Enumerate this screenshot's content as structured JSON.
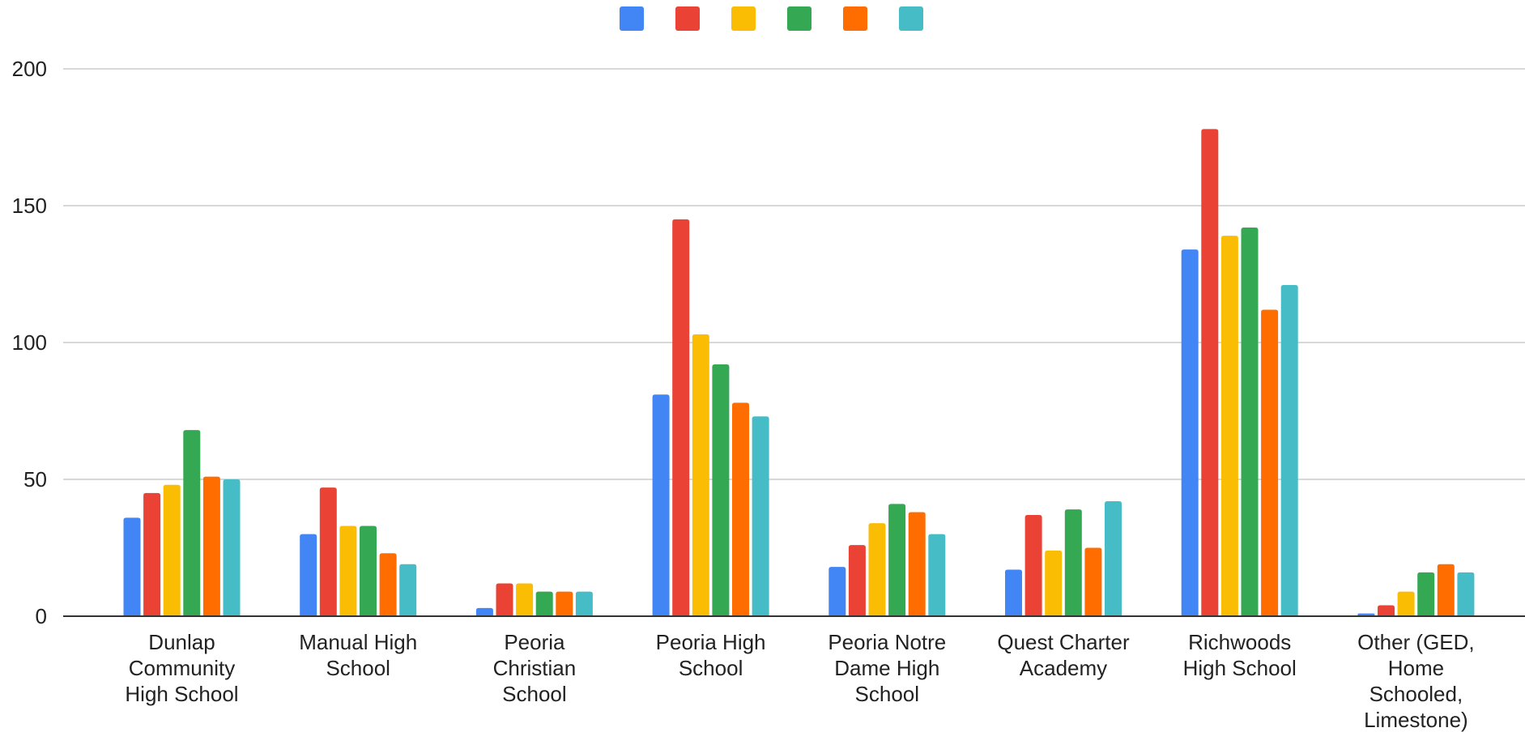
{
  "chart_data": {
    "type": "bar",
    "categories": [
      [
        "Dunlap",
        "Community",
        "High School"
      ],
      [
        "Manual High",
        "School"
      ],
      [
        "Peoria",
        "Christian",
        "School"
      ],
      [
        "Peoria High",
        "School"
      ],
      [
        "Peoria Notre",
        "Dame High",
        "School"
      ],
      [
        "Quest Charter",
        "Academy"
      ],
      [
        "Richwoods",
        "High School"
      ],
      [
        "Other (GED,",
        "Home",
        "Schooled,",
        "Limestone)"
      ]
    ],
    "series": [
      {
        "color": "#4285F4",
        "values": [
          36,
          30,
          3,
          81,
          18,
          17,
          134,
          1
        ]
      },
      {
        "color": "#EA4335",
        "values": [
          45,
          47,
          12,
          145,
          26,
          37,
          178,
          4
        ]
      },
      {
        "color": "#FBBC04",
        "values": [
          48,
          33,
          12,
          103,
          34,
          24,
          139,
          9
        ]
      },
      {
        "color": "#34A853",
        "values": [
          68,
          33,
          9,
          92,
          41,
          39,
          142,
          16
        ]
      },
      {
        "color": "#FF6D01",
        "values": [
          51,
          23,
          9,
          78,
          38,
          25,
          112,
          19
        ]
      },
      {
        "color": "#46BDC6",
        "values": [
          50,
          19,
          9,
          73,
          30,
          42,
          121,
          16
        ]
      }
    ],
    "yticks": [
      "0",
      "50",
      "100",
      "150",
      "200"
    ],
    "ylim": [
      0,
      200
    ],
    "grid": true,
    "legend": "top-center"
  }
}
